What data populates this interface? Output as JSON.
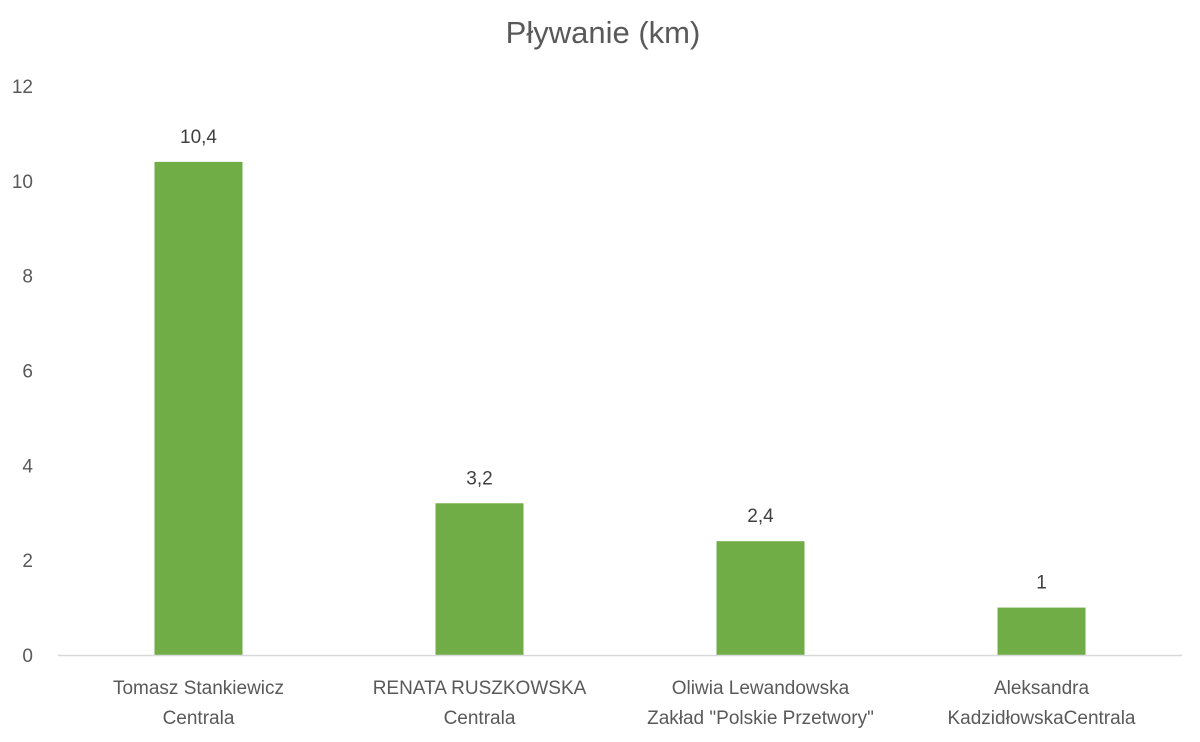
{
  "chart_data": {
    "type": "bar",
    "title": "Pływanie (km)",
    "xlabel": "",
    "ylabel": "",
    "categories": [
      [
        "Tomasz Stankiewicz",
        "Centrala"
      ],
      [
        "RENATA RUSZKOWSKA",
        "Centrala"
      ],
      [
        "Oliwia Lewandowska",
        "Zakład \"Polskie Przetwory\""
      ],
      [
        "Aleksandra",
        "KadzidłowskaCentrala"
      ]
    ],
    "values": [
      10.4,
      3.2,
      2.4,
      1
    ],
    "data_labels": [
      "10,4",
      "3,2",
      "2,4",
      "1"
    ],
    "ylim": [
      0,
      12
    ],
    "yticks": [
      0,
      2,
      4,
      6,
      8,
      10,
      12
    ],
    "grid": false,
    "legend": "none",
    "colors": {
      "bar": "#70AD47",
      "axis": "#D9D9D9"
    }
  }
}
